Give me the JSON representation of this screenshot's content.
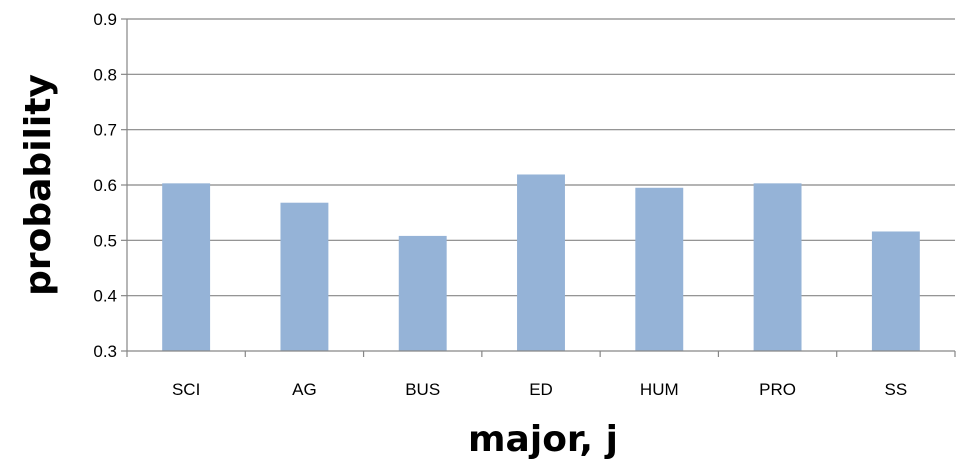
{
  "chart_data": {
    "type": "bar",
    "title": "",
    "xlabel": "major, j",
    "ylabel": "probability",
    "categories": [
      "SCI",
      "AG",
      "BUS",
      "ED",
      "HUM",
      "PRO",
      "SS"
    ],
    "values": [
      0.603,
      0.568,
      0.508,
      0.619,
      0.595,
      0.603,
      0.516
    ],
    "ylim": [
      0.3,
      0.9
    ],
    "yticks": [
      "0.3",
      "0.4",
      "0.5",
      "0.6",
      "0.7",
      "0.8",
      "0.9"
    ],
    "grid": true,
    "legend": "none",
    "bar_color": "#95B3D7",
    "grid_color": "#868686"
  }
}
